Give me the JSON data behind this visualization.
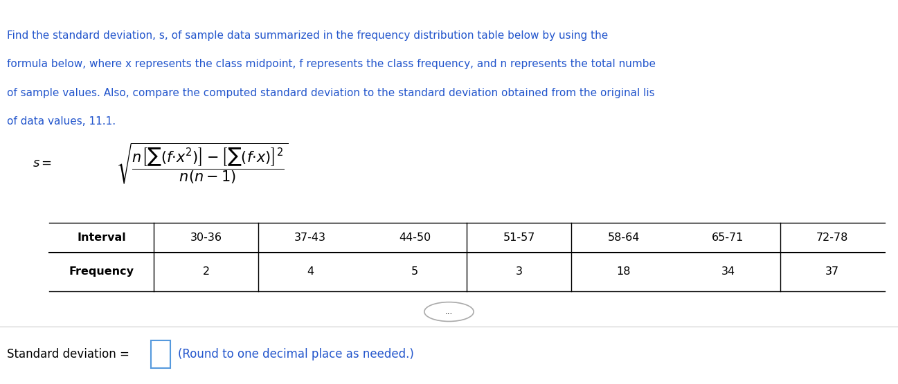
{
  "bg_color": "#ffffff",
  "top_bar_color": "#4a90a4",
  "text_color": "#000000",
  "blue_text_color": "#2255cc",
  "paragraph_text": [
    "Find the standard deviation, s, of sample data summarized in the frequency distribution table below by using the",
    "formula below, where x represents the class midpoint, f represents the class frequency, and n represents the total numbe",
    "of sample values. Also, compare the computed standard deviation to the standard deviation obtained from the original lis",
    "of data values, 11.1."
  ],
  "intervals": [
    "30-36",
    "37-43",
    "44-50",
    "51-57",
    "58-64",
    "65-71",
    "72-78"
  ],
  "frequencies": [
    "2",
    "4",
    "5",
    "3",
    "18",
    "34",
    "37"
  ],
  "std_dev_label": "Standard deviation =",
  "std_dev_note": "(Round to one decimal place as needed.)",
  "dots_label": "...",
  "separator_after_cols": [
    0,
    1,
    3,
    4,
    6
  ]
}
